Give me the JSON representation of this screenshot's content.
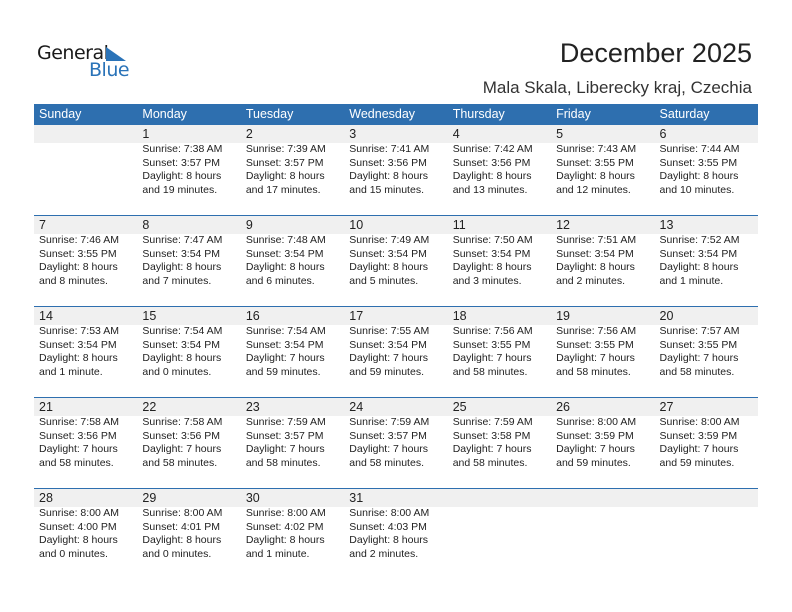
{
  "logo": {
    "word1": "General",
    "word2": "Blue"
  },
  "title": "December 2025",
  "location": "Mala Skala, Liberecky kraj, Czechia",
  "weekdays": [
    "Sunday",
    "Monday",
    "Tuesday",
    "Wednesday",
    "Thursday",
    "Friday",
    "Saturday"
  ],
  "colors": {
    "header": "#2e6faf",
    "date_bar": "#f0f0f0"
  },
  "weeks": [
    [
      null,
      {
        "d": "1",
        "rise": "Sunrise: 7:38 AM",
        "set": "Sunset: 3:57 PM",
        "dl1": "Daylight: 8 hours",
        "dl2": "and 19 minutes."
      },
      {
        "d": "2",
        "rise": "Sunrise: 7:39 AM",
        "set": "Sunset: 3:57 PM",
        "dl1": "Daylight: 8 hours",
        "dl2": "and 17 minutes."
      },
      {
        "d": "3",
        "rise": "Sunrise: 7:41 AM",
        "set": "Sunset: 3:56 PM",
        "dl1": "Daylight: 8 hours",
        "dl2": "and 15 minutes."
      },
      {
        "d": "4",
        "rise": "Sunrise: 7:42 AM",
        "set": "Sunset: 3:56 PM",
        "dl1": "Daylight: 8 hours",
        "dl2": "and 13 minutes."
      },
      {
        "d": "5",
        "rise": "Sunrise: 7:43 AM",
        "set": "Sunset: 3:55 PM",
        "dl1": "Daylight: 8 hours",
        "dl2": "and 12 minutes."
      },
      {
        "d": "6",
        "rise": "Sunrise: 7:44 AM",
        "set": "Sunset: 3:55 PM",
        "dl1": "Daylight: 8 hours",
        "dl2": "and 10 minutes."
      }
    ],
    [
      {
        "d": "7",
        "rise": "Sunrise: 7:46 AM",
        "set": "Sunset: 3:55 PM",
        "dl1": "Daylight: 8 hours",
        "dl2": "and 8 minutes."
      },
      {
        "d": "8",
        "rise": "Sunrise: 7:47 AM",
        "set": "Sunset: 3:54 PM",
        "dl1": "Daylight: 8 hours",
        "dl2": "and 7 minutes."
      },
      {
        "d": "9",
        "rise": "Sunrise: 7:48 AM",
        "set": "Sunset: 3:54 PM",
        "dl1": "Daylight: 8 hours",
        "dl2": "and 6 minutes."
      },
      {
        "d": "10",
        "rise": "Sunrise: 7:49 AM",
        "set": "Sunset: 3:54 PM",
        "dl1": "Daylight: 8 hours",
        "dl2": "and 5 minutes."
      },
      {
        "d": "11",
        "rise": "Sunrise: 7:50 AM",
        "set": "Sunset: 3:54 PM",
        "dl1": "Daylight: 8 hours",
        "dl2": "and 3 minutes."
      },
      {
        "d": "12",
        "rise": "Sunrise: 7:51 AM",
        "set": "Sunset: 3:54 PM",
        "dl1": "Daylight: 8 hours",
        "dl2": "and 2 minutes."
      },
      {
        "d": "13",
        "rise": "Sunrise: 7:52 AM",
        "set": "Sunset: 3:54 PM",
        "dl1": "Daylight: 8 hours",
        "dl2": "and 1 minute."
      }
    ],
    [
      {
        "d": "14",
        "rise": "Sunrise: 7:53 AM",
        "set": "Sunset: 3:54 PM",
        "dl1": "Daylight: 8 hours",
        "dl2": "and 1 minute."
      },
      {
        "d": "15",
        "rise": "Sunrise: 7:54 AM",
        "set": "Sunset: 3:54 PM",
        "dl1": "Daylight: 8 hours",
        "dl2": "and 0 minutes."
      },
      {
        "d": "16",
        "rise": "Sunrise: 7:54 AM",
        "set": "Sunset: 3:54 PM",
        "dl1": "Daylight: 7 hours",
        "dl2": "and 59 minutes."
      },
      {
        "d": "17",
        "rise": "Sunrise: 7:55 AM",
        "set": "Sunset: 3:54 PM",
        "dl1": "Daylight: 7 hours",
        "dl2": "and 59 minutes."
      },
      {
        "d": "18",
        "rise": "Sunrise: 7:56 AM",
        "set": "Sunset: 3:55 PM",
        "dl1": "Daylight: 7 hours",
        "dl2": "and 58 minutes."
      },
      {
        "d": "19",
        "rise": "Sunrise: 7:56 AM",
        "set": "Sunset: 3:55 PM",
        "dl1": "Daylight: 7 hours",
        "dl2": "and 58 minutes."
      },
      {
        "d": "20",
        "rise": "Sunrise: 7:57 AM",
        "set": "Sunset: 3:55 PM",
        "dl1": "Daylight: 7 hours",
        "dl2": "and 58 minutes."
      }
    ],
    [
      {
        "d": "21",
        "rise": "Sunrise: 7:58 AM",
        "set": "Sunset: 3:56 PM",
        "dl1": "Daylight: 7 hours",
        "dl2": "and 58 minutes."
      },
      {
        "d": "22",
        "rise": "Sunrise: 7:58 AM",
        "set": "Sunset: 3:56 PM",
        "dl1": "Daylight: 7 hours",
        "dl2": "and 58 minutes."
      },
      {
        "d": "23",
        "rise": "Sunrise: 7:59 AM",
        "set": "Sunset: 3:57 PM",
        "dl1": "Daylight: 7 hours",
        "dl2": "and 58 minutes."
      },
      {
        "d": "24",
        "rise": "Sunrise: 7:59 AM",
        "set": "Sunset: 3:57 PM",
        "dl1": "Daylight: 7 hours",
        "dl2": "and 58 minutes."
      },
      {
        "d": "25",
        "rise": "Sunrise: 7:59 AM",
        "set": "Sunset: 3:58 PM",
        "dl1": "Daylight: 7 hours",
        "dl2": "and 58 minutes."
      },
      {
        "d": "26",
        "rise": "Sunrise: 8:00 AM",
        "set": "Sunset: 3:59 PM",
        "dl1": "Daylight: 7 hours",
        "dl2": "and 59 minutes."
      },
      {
        "d": "27",
        "rise": "Sunrise: 8:00 AM",
        "set": "Sunset: 3:59 PM",
        "dl1": "Daylight: 7 hours",
        "dl2": "and 59 minutes."
      }
    ],
    [
      {
        "d": "28",
        "rise": "Sunrise: 8:00 AM",
        "set": "Sunset: 4:00 PM",
        "dl1": "Daylight: 8 hours",
        "dl2": "and 0 minutes."
      },
      {
        "d": "29",
        "rise": "Sunrise: 8:00 AM",
        "set": "Sunset: 4:01 PM",
        "dl1": "Daylight: 8 hours",
        "dl2": "and 0 minutes."
      },
      {
        "d": "30",
        "rise": "Sunrise: 8:00 AM",
        "set": "Sunset: 4:02 PM",
        "dl1": "Daylight: 8 hours",
        "dl2": "and 1 minute."
      },
      {
        "d": "31",
        "rise": "Sunrise: 8:00 AM",
        "set": "Sunset: 4:03 PM",
        "dl1": "Daylight: 8 hours",
        "dl2": "and 2 minutes."
      },
      null,
      null,
      null
    ]
  ]
}
